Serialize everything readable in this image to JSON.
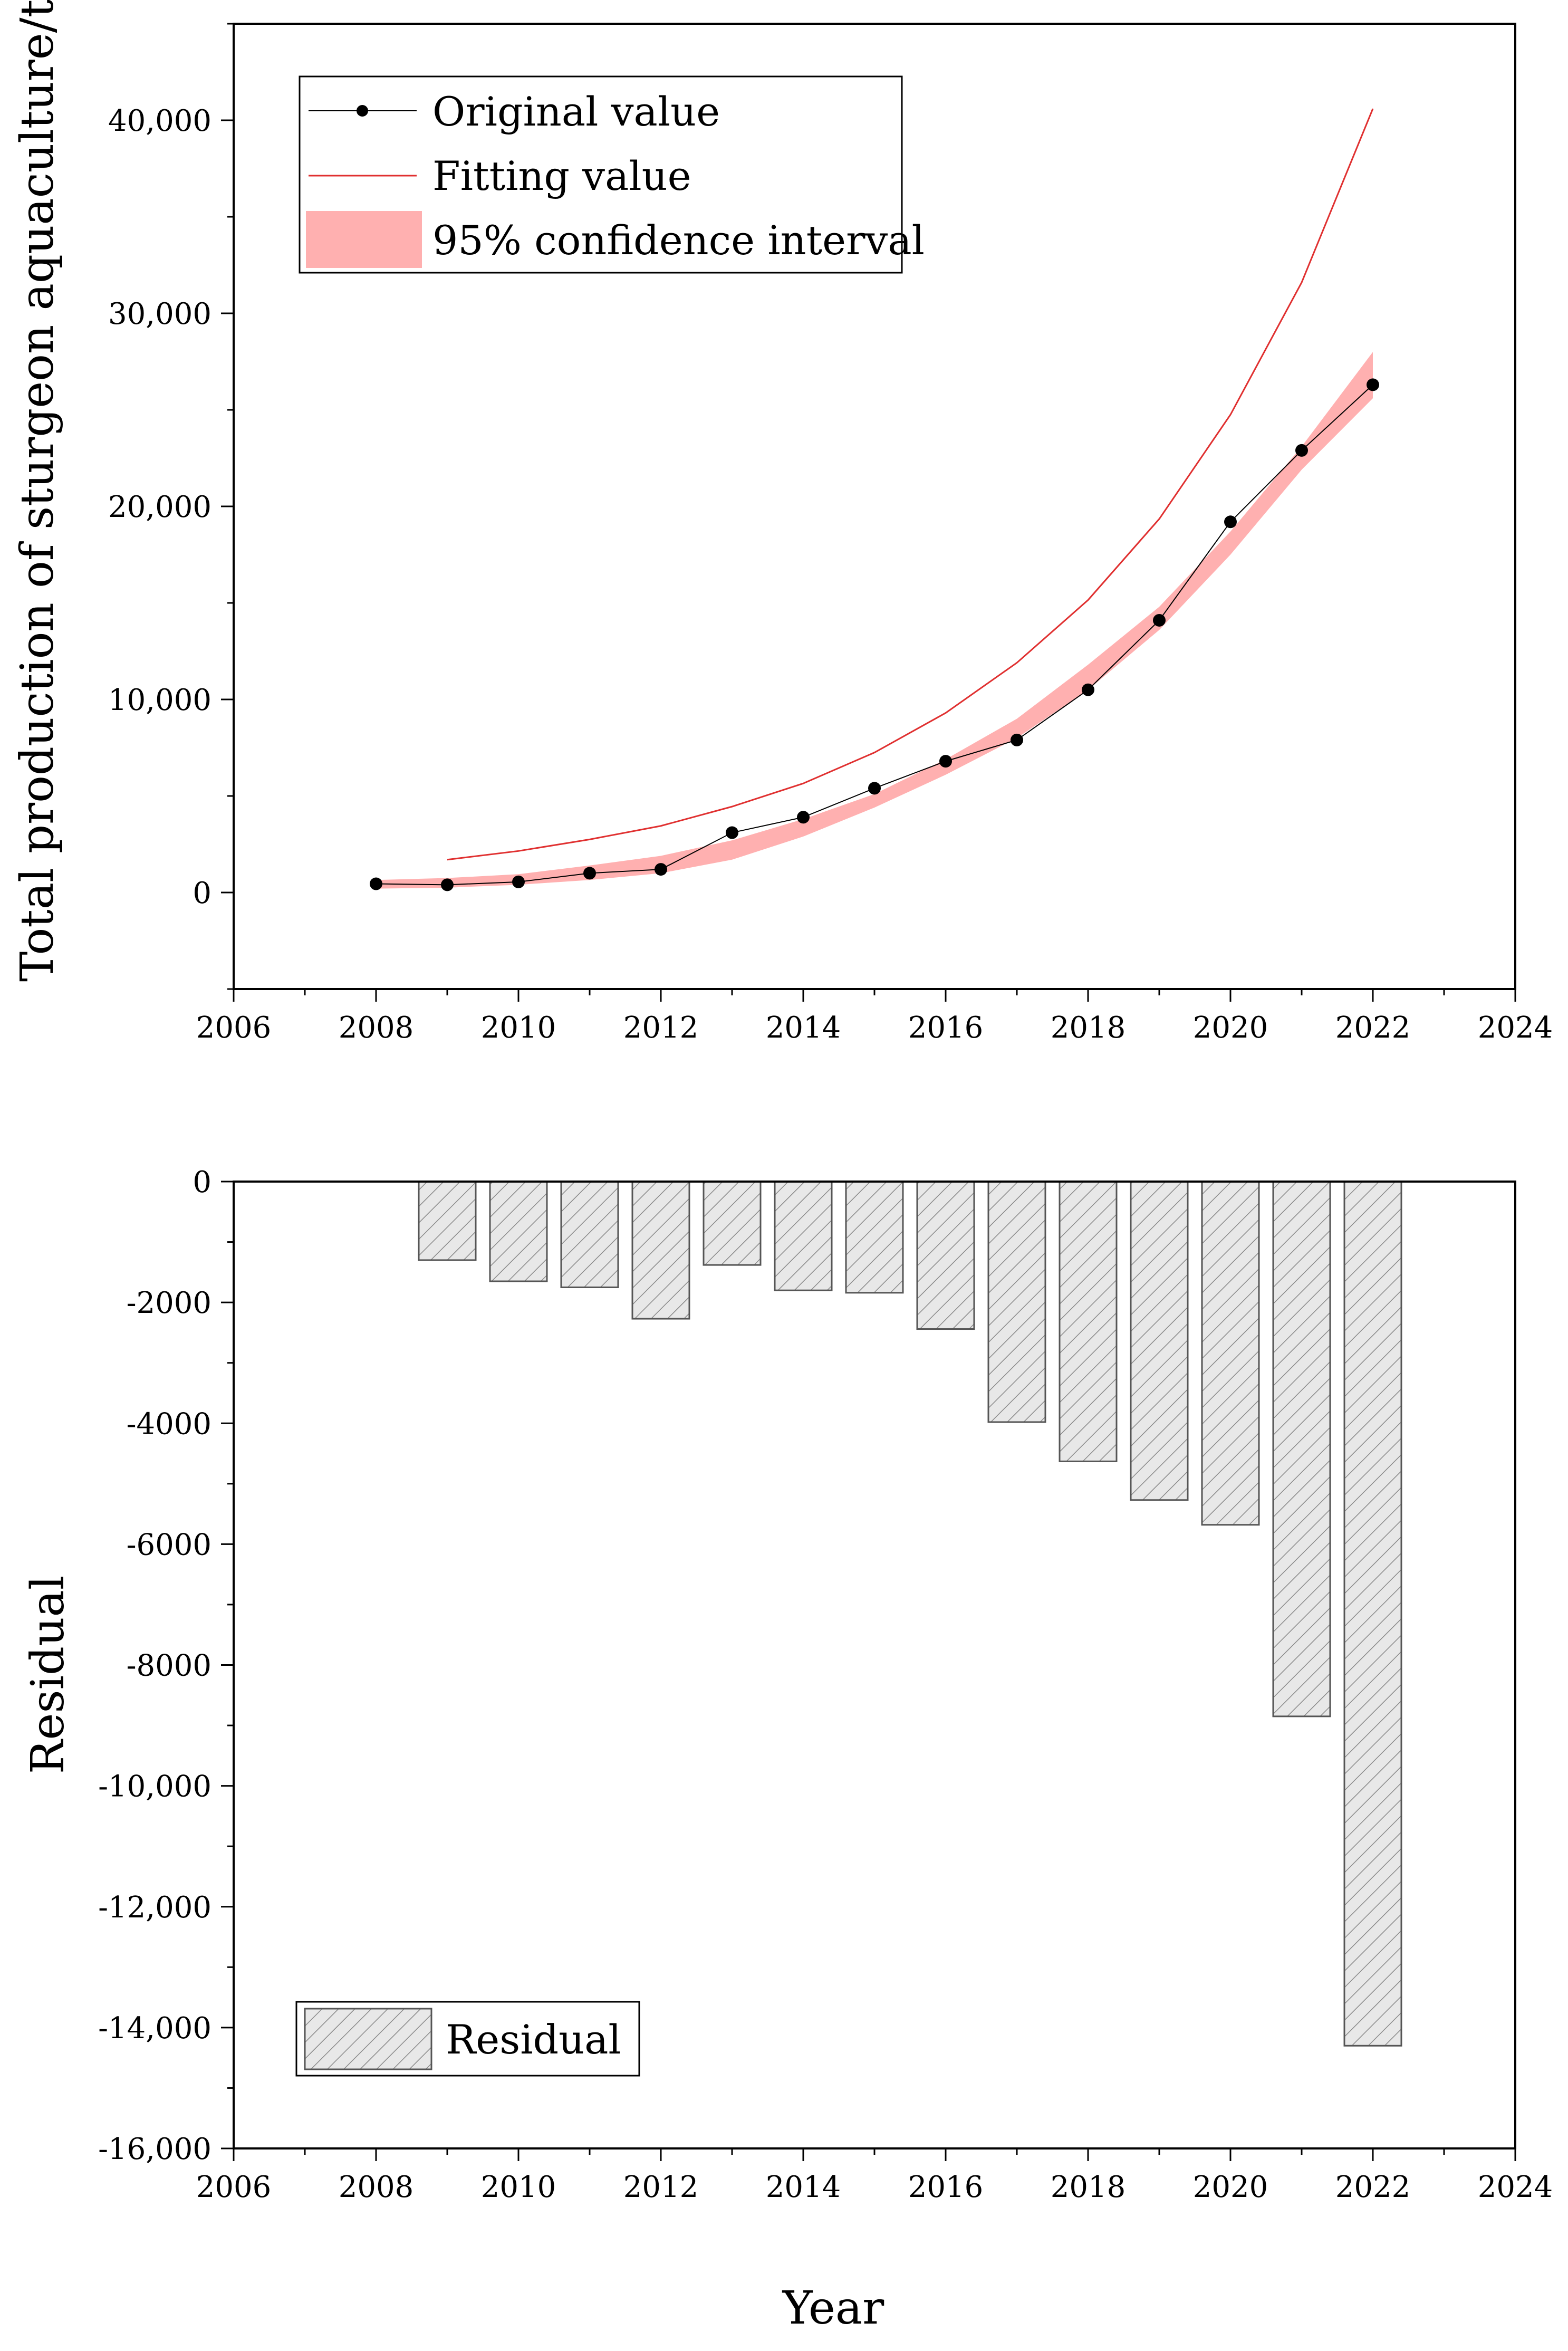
{
  "colors": {
    "fit_line": "#e03030",
    "ci_fill": "#ffb0b0",
    "orig_line": "#000000",
    "bar_fill": "#e8e8e8",
    "bar_hatch": "#8a8a8a",
    "bar_stroke": "#555555"
  },
  "chart_data": [
    {
      "type": "line",
      "title": "",
      "xlabel": "",
      "ylabel": "Total production of sturgeon aquaculture/t",
      "xlim": [
        2006,
        2024
      ],
      "ylim": [
        -5000,
        45000
      ],
      "x_ticks": [
        "2006",
        "2008",
        "2010",
        "2012",
        "2014",
        "2016",
        "2018",
        "2020",
        "2022",
        "2024"
      ],
      "y_ticks": [
        "0",
        "10,000",
        "20,000",
        "30,000",
        "40,000"
      ],
      "legend_position": "top-left",
      "legend": [
        {
          "key": "orig",
          "label": "Original value"
        },
        {
          "key": "fit",
          "label": "Fitting value"
        },
        {
          "key": "ci",
          "label": "95% confidence interval"
        }
      ],
      "series": [
        {
          "name": "Original value",
          "x": [
            2008,
            2009,
            2010,
            2011,
            2012,
            2013,
            2014,
            2015,
            2016,
            2017,
            2018,
            2019,
            2020,
            2021,
            2022
          ],
          "y": [
            450,
            400,
            550,
            1000,
            1200,
            3100,
            3900,
            5400,
            6800,
            7900,
            10500,
            14100,
            19200,
            22900,
            26300
          ]
        },
        {
          "name": "Fitting value",
          "x": [
            2009,
            2010,
            2011,
            2012,
            2013,
            2014,
            2015,
            2016,
            2017,
            2018,
            2019,
            2020,
            2021,
            2022
          ],
          "y": [
            1700,
            2150,
            2750,
            3450,
            4450,
            5650,
            7250,
            9300,
            11900,
            15150,
            19350,
            24750,
            31600,
            40600
          ]
        },
        {
          "name": "95% confidence interval",
          "x": [
            2008,
            2009,
            2010,
            2011,
            2012,
            2013,
            2014,
            2015,
            2016,
            2017,
            2018,
            2019,
            2020,
            2021,
            2022
          ],
          "lower": [
            200,
            250,
            400,
            650,
            1000,
            1700,
            2900,
            4400,
            6100,
            8000,
            10500,
            13600,
            17500,
            21900,
            25600
          ],
          "upper": [
            650,
            750,
            950,
            1400,
            1900,
            2700,
            3800,
            5100,
            6900,
            9000,
            11800,
            14800,
            18700,
            23100,
            28000
          ]
        }
      ]
    },
    {
      "type": "bar",
      "title": "",
      "xlabel": "Year",
      "ylabel": "Residual",
      "xlim": [
        2006,
        2024
      ],
      "ylim": [
        -16000,
        0
      ],
      "x_ticks": [
        "2006",
        "2008",
        "2010",
        "2012",
        "2014",
        "2016",
        "2018",
        "2020",
        "2022",
        "2024"
      ],
      "y_ticks": [
        "0",
        "-2000",
        "-4000",
        "-6000",
        "-8000",
        "-10,000",
        "-12,000",
        "-14,000",
        "-16,000"
      ],
      "legend_position": "bottom-left",
      "legend": [
        {
          "key": "res",
          "label": "Residual"
        }
      ],
      "series": [
        {
          "name": "Residual",
          "x": [
            2009,
            2010,
            2011,
            2012,
            2013,
            2014,
            2015,
            2016,
            2017,
            2018,
            2019,
            2020,
            2021,
            2022
          ],
          "values": [
            -1300,
            -1650,
            -1750,
            -2270,
            -1380,
            -1800,
            -1840,
            -2440,
            -3980,
            -4630,
            -5270,
            -5680,
            -8850,
            -14300
          ]
        }
      ]
    }
  ]
}
